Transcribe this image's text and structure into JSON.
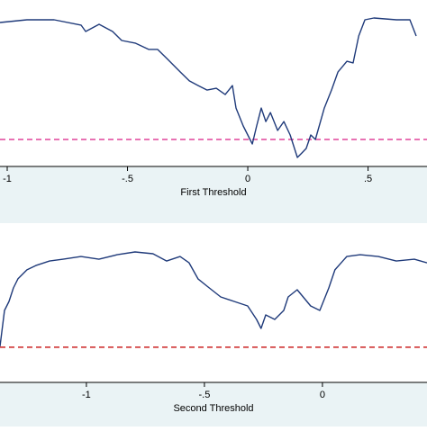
{
  "chart_data": [
    {
      "type": "line",
      "xlabel": "First Threshold",
      "xlim": [
        -1.03,
        0.745
      ],
      "xticks": [
        -1,
        {
          "value": -0.5,
          "label": "-.5"
        },
        0,
        {
          "value": 0.5,
          "label": ".5"
        }
      ],
      "ylim": [
        0,
        100
      ],
      "x": [
        -1.03,
        -0.918,
        -0.805,
        -0.693,
        -0.674,
        -0.618,
        -0.562,
        -0.524,
        -0.468,
        -0.412,
        -0.375,
        -0.337,
        -0.281,
        -0.243,
        -0.206,
        -0.169,
        -0.131,
        -0.094,
        -0.064,
        -0.049,
        -0.019,
        0.019,
        0.037,
        0.056,
        0.075,
        0.094,
        0.124,
        0.15,
        0.176,
        0.206,
        0.225,
        0.243,
        0.262,
        0.281,
        0.318,
        0.348,
        0.375,
        0.412,
        0.438,
        0.461,
        0.487,
        0.524,
        0.618,
        0.674,
        0.7
      ],
      "values": [
        86.5,
        88.1,
        88.1,
        84.9,
        81.1,
        85.4,
        81.1,
        75.7,
        74.1,
        70.3,
        70.3,
        64.9,
        56.8,
        51.4,
        48.6,
        45.9,
        47.0,
        43.2,
        48.6,
        35.1,
        24.3,
        13.5,
        24.3,
        35.1,
        27.0,
        32.4,
        21.6,
        27.0,
        18.9,
        5.4,
        8.1,
        10.8,
        18.9,
        16.2,
        35.1,
        45.9,
        56.8,
        63.2,
        62.2,
        78.4,
        88.1,
        89.2,
        88.1,
        88.1,
        78.4
      ],
      "color": "#1f3a7a",
      "threshold": 16.2,
      "threshold_color": "#e0449a"
    },
    {
      "type": "line",
      "xlabel": "Second Threshold",
      "xlim": [
        -1.366,
        0.443
      ],
      "xticks": [
        -1,
        {
          "value": -0.5,
          "label": "-.5"
        },
        0
      ],
      "ylim": [
        0,
        100
      ],
      "x": [
        -1.366,
        -1.347,
        -1.328,
        -1.309,
        -1.29,
        -1.252,
        -1.214,
        -1.156,
        -1.099,
        -1.023,
        -0.947,
        -0.87,
        -0.794,
        -0.718,
        -0.66,
        -0.603,
        -0.565,
        -0.527,
        -0.489,
        -0.431,
        -0.374,
        -0.317,
        -0.279,
        -0.26,
        -0.24,
        -0.202,
        -0.164,
        -0.145,
        -0.107,
        -0.05,
        -0.011,
        0.027,
        0.053,
        0.103,
        0.16,
        0.237,
        0.313,
        0.389,
        0.443
      ],
      "values": [
        24.0,
        47.9,
        53.9,
        62.9,
        68.9,
        74.9,
        77.8,
        80.8,
        82.0,
        83.8,
        82.0,
        85.0,
        86.8,
        85.6,
        80.8,
        83.8,
        79.6,
        68.9,
        64.1,
        56.9,
        53.9,
        50.9,
        41.9,
        35.9,
        44.9,
        41.9,
        47.9,
        56.9,
        61.7,
        50.9,
        47.9,
        62.9,
        74.9,
        83.8,
        85.0,
        83.8,
        80.8,
        82.0,
        79.6
      ],
      "color": "#1f3a7a",
      "threshold": 23.4,
      "threshold_color": "#cc2222"
    }
  ]
}
